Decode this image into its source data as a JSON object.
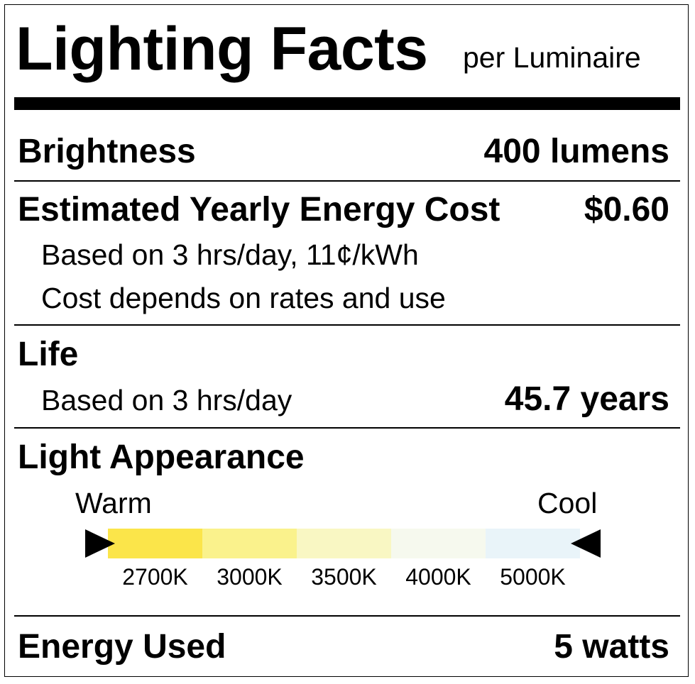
{
  "header": {
    "title": "Lighting Facts",
    "subtitle": "per Luminaire"
  },
  "brightness": {
    "label": "Brightness",
    "value": "400 lumens"
  },
  "energy_cost": {
    "label": "Estimated Yearly Energy Cost",
    "value": "$0.60",
    "note1": "Based on 3 hrs/day, 11¢/kWh",
    "note2": "Cost depends on rates and use"
  },
  "life": {
    "label": "Life",
    "note": "Based on 3 hrs/day",
    "value": "45.7 years"
  },
  "appearance": {
    "label": "Light Appearance",
    "warm_label": "Warm",
    "cool_label": "Cool",
    "indicator_position": "warm end",
    "scale": [
      {
        "label": "2700K",
        "color": "#fbe54a"
      },
      {
        "label": "3000K",
        "color": "#faf28c"
      },
      {
        "label": "3500K",
        "color": "#f9f7c3"
      },
      {
        "label": "4000K",
        "color": "#f6f9ee"
      },
      {
        "label": "5000K",
        "color": "#e9f4f9"
      }
    ]
  },
  "energy_used": {
    "label": "Energy Used",
    "value": "5 watts"
  }
}
